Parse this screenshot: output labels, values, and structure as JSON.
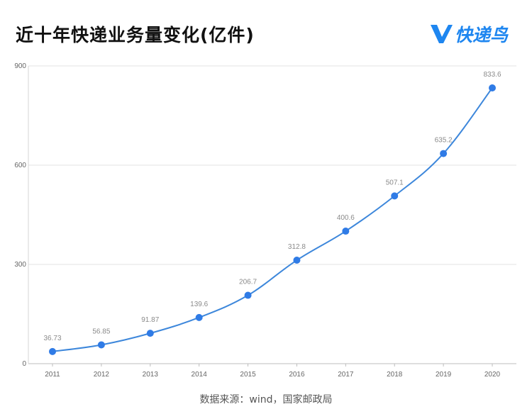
{
  "header": {
    "title": "近十年快递业务量变化(亿件)",
    "brand": "快递鸟",
    "brand_icon": "v-logo-icon",
    "brand_color": "#1e86f0"
  },
  "chart_data": {
    "type": "line",
    "title": "近十年快递业务量变化(亿件)",
    "xlabel": "",
    "ylabel": "",
    "categories": [
      "2011",
      "2012",
      "2013",
      "2014",
      "2015",
      "2016",
      "2017",
      "2018",
      "2019",
      "2020"
    ],
    "values": [
      36.73,
      56.85,
      91.87,
      139.6,
      206.7,
      312.8,
      400.6,
      507.1,
      635.2,
      833.6
    ],
    "data_labels": [
      "36.73",
      "56.85",
      "91.87",
      "139.6",
      "206.7",
      "312.8",
      "400.6",
      "507.1",
      "635.2",
      "833.6"
    ],
    "ylim": [
      0,
      900
    ],
    "yticks": [
      "0",
      "300",
      "600",
      "900"
    ],
    "grid": true,
    "legend": "none",
    "line_color": "#3d87db",
    "point_color": "#2f7be6",
    "smooth": true
  },
  "footer": {
    "source": "数据来源：wind，国家邮政局"
  }
}
